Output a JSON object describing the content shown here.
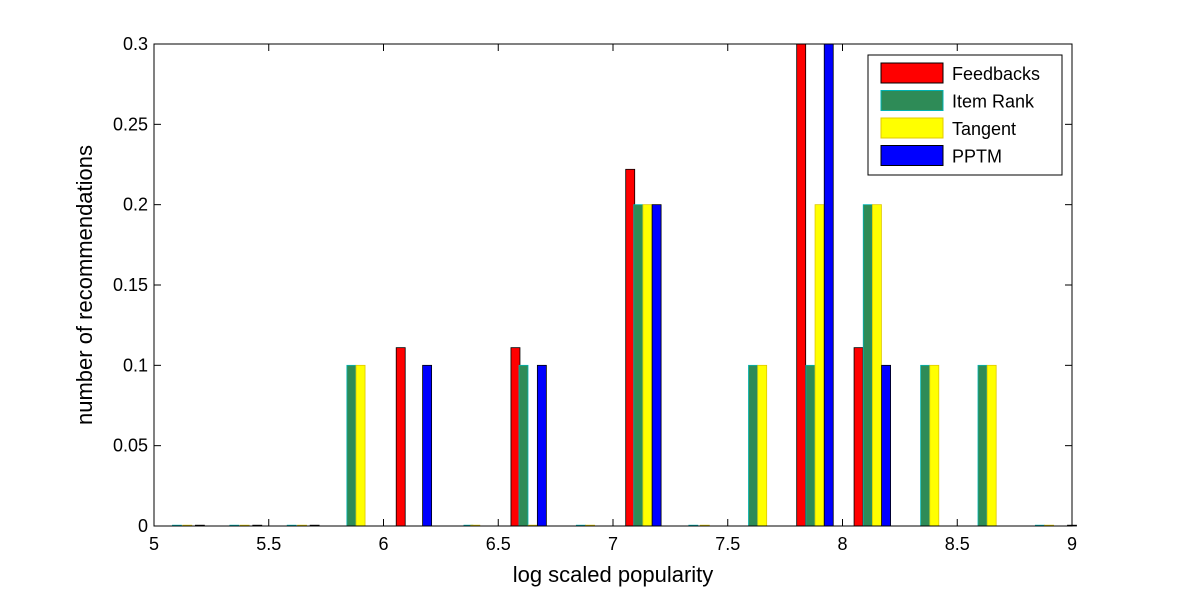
{
  "chart_data": {
    "type": "bar",
    "title": "",
    "xlabel": "log scaled popularity",
    "ylabel": "number of recommendations",
    "xlim": [
      5,
      9
    ],
    "ylim": [
      0,
      0.3
    ],
    "x_ticks": [
      "5",
      "5.5",
      "6",
      "6.5",
      "7",
      "7.5",
      "8",
      "8.5",
      "9"
    ],
    "y_ticks": [
      "0",
      "0.05",
      "0.1",
      "0.15",
      "0.2",
      "0.25",
      "0.3"
    ],
    "grid": false,
    "legend_position": "top-right",
    "series": [
      {
        "name": "Feedbacks",
        "color": "#ff0000",
        "points": [
          {
            "x": 5.2,
            "y": 0
          },
          {
            "x": 5.45,
            "y": 0
          },
          {
            "x": 5.7,
            "y": 0
          },
          {
            "x": 6.075,
            "y": 0.111
          },
          {
            "x": 6.575,
            "y": 0.111
          },
          {
            "x": 7.075,
            "y": 0.222
          },
          {
            "x": 7.82,
            "y": 0.3
          },
          {
            "x": 8.07,
            "y": 0.111
          },
          {
            "x": 9.0,
            "y": 0
          }
        ]
      },
      {
        "name": "Item Rank",
        "color": "#2e8b57",
        "points": [
          {
            "x": 5.1,
            "y": 0
          },
          {
            "x": 5.35,
            "y": 0
          },
          {
            "x": 5.6,
            "y": 0
          },
          {
            "x": 5.86,
            "y": 0.1
          },
          {
            "x": 6.37,
            "y": 0
          },
          {
            "x": 6.61,
            "y": 0.1
          },
          {
            "x": 6.86,
            "y": 0
          },
          {
            "x": 7.11,
            "y": 0.2
          },
          {
            "x": 7.35,
            "y": 0
          },
          {
            "x": 7.61,
            "y": 0.1
          },
          {
            "x": 7.86,
            "y": 0.1
          },
          {
            "x": 8.11,
            "y": 0.2
          },
          {
            "x": 8.36,
            "y": 0.1
          },
          {
            "x": 8.61,
            "y": 0.1
          },
          {
            "x": 8.86,
            "y": 0
          }
        ]
      },
      {
        "name": "Tangent",
        "color": "#ffff00",
        "points": [
          {
            "x": 5.145,
            "y": 0
          },
          {
            "x": 5.395,
            "y": 0
          },
          {
            "x": 5.645,
            "y": 0
          },
          {
            "x": 5.9,
            "y": 0.1
          },
          {
            "x": 6.4,
            "y": 0
          },
          {
            "x": 6.65,
            "y": 0
          },
          {
            "x": 6.9,
            "y": 0
          },
          {
            "x": 7.15,
            "y": 0.2
          },
          {
            "x": 7.4,
            "y": 0
          },
          {
            "x": 7.65,
            "y": 0.1
          },
          {
            "x": 7.9,
            "y": 0.2
          },
          {
            "x": 8.15,
            "y": 0.2
          },
          {
            "x": 8.4,
            "y": 0.1
          },
          {
            "x": 8.65,
            "y": 0.1
          },
          {
            "x": 8.9,
            "y": 0
          }
        ]
      },
      {
        "name": "PPTM",
        "color": "#0000ff",
        "points": [
          {
            "x": 6.19,
            "y": 0.1
          },
          {
            "x": 6.69,
            "y": 0.1
          },
          {
            "x": 7.19,
            "y": 0.2
          },
          {
            "x": 7.94,
            "y": 0.3
          },
          {
            "x": 8.19,
            "y": 0.1
          }
        ]
      }
    ]
  }
}
